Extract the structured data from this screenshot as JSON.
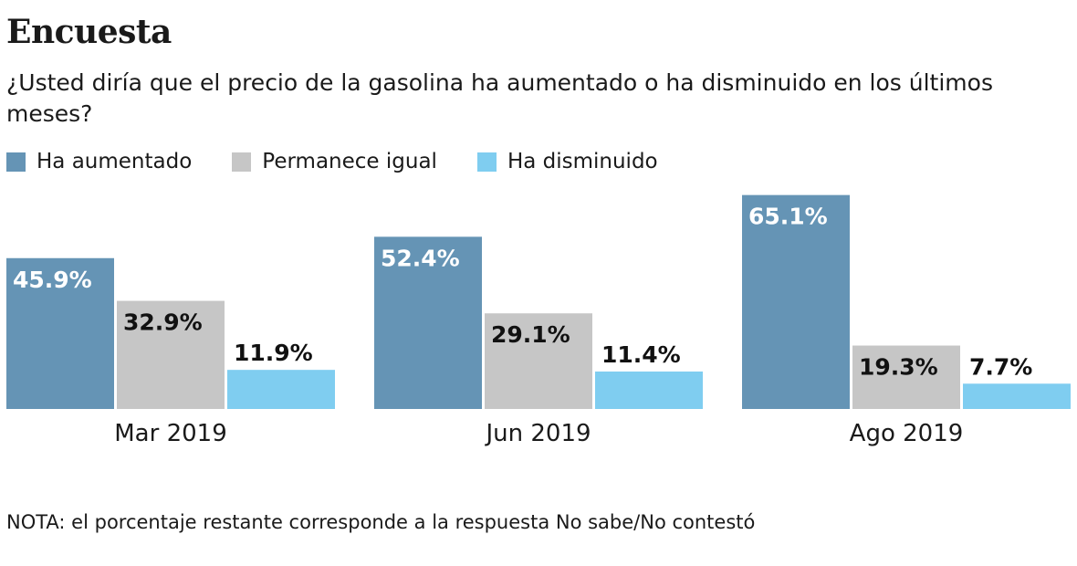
{
  "chart_data": {
    "type": "bar",
    "title": "Encuesta",
    "subtitle": "¿Usted diría que el precio de la gasolina ha aumentado o ha disminuido en los últimos meses?",
    "categories": [
      "Mar 2019",
      "Jun 2019",
      "Ago 2019"
    ],
    "series": [
      {
        "name": "Ha aumentado",
        "color": "#6594b5",
        "values": [
          45.9,
          52.4,
          65.1
        ]
      },
      {
        "name": "Permanece igual",
        "color": "#c6c6c6",
        "values": [
          32.9,
          29.1,
          19.3
        ]
      },
      {
        "name": "Ha disminuido",
        "color": "#7fcdf0",
        "values": [
          11.9,
          11.4,
          7.7
        ]
      }
    ],
    "value_suffix": "%",
    "legend_position": "top-left",
    "grid": false,
    "note": "NOTA: el porcentaje restante corresponde a la respuesta No sabe/No contestó"
  }
}
